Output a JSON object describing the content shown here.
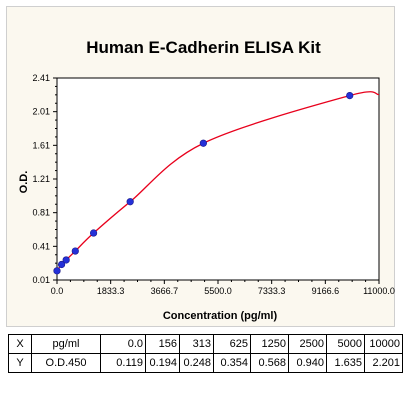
{
  "chart_data": {
    "type": "scatter",
    "title": "Human E-Cadherin ELISA Kit",
    "xlabel": "Concentration (pg/ml)",
    "ylabel": "O.D.",
    "xlim": [
      0,
      11000
    ],
    "ylim": [
      0.01,
      2.41
    ],
    "x_ticks": [
      "0.0",
      "1833.3",
      "3666.7",
      "5500.0",
      "7333.3",
      "9166.6",
      "11000.0"
    ],
    "y_ticks": [
      "0.01",
      "0.41",
      "0.81",
      "1.21",
      "1.61",
      "2.01",
      "2.41"
    ],
    "series": [
      {
        "x": [
          0,
          156,
          313,
          625,
          1250,
          2500,
          5000,
          10000
        ],
        "values": [
          0.119,
          0.194,
          0.248,
          0.354,
          0.568,
          0.94,
          1.635,
          2.201
        ]
      }
    ],
    "fit_curve_color": "#e8001c",
    "point_color": "#2430d8",
    "grid": false
  },
  "table": {
    "rows": [
      {
        "head": "X",
        "unit": "pg/ml",
        "cells": [
          "0.0",
          "156",
          "313",
          "625",
          "1250",
          "2500",
          "5000",
          "10000"
        ]
      },
      {
        "head": "Y",
        "unit": "O.D.450",
        "cells": [
          "0.119",
          "0.194",
          "0.248",
          "0.354",
          "0.568",
          "0.940",
          "1.635",
          "2.201"
        ]
      }
    ]
  }
}
